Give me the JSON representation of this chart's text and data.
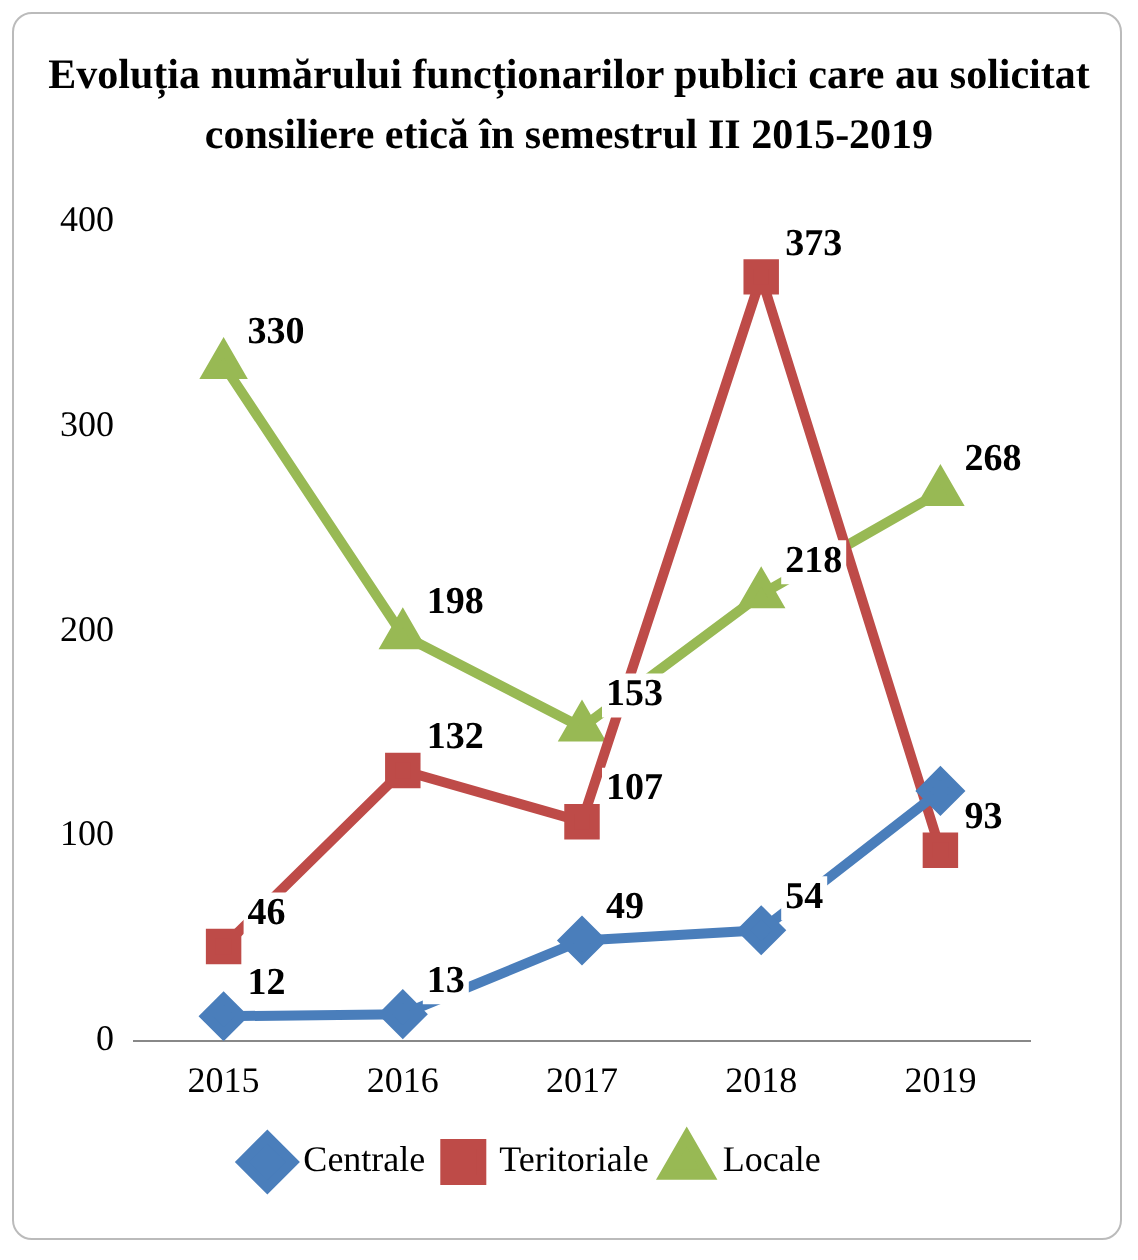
{
  "chart_data": {
    "type": "line",
    "title": "Evoluția numărului funcționarilor publici care au solicitat consiliere etică în semestrul  II 2015-2019",
    "categories": [
      "2015",
      "2016",
      "2017",
      "2018",
      "2019"
    ],
    "series": [
      {
        "name": "Centrale",
        "color": "#4a7ebb",
        "marker": "diamond",
        "values": [
          12,
          13,
          49,
          54,
          122
        ],
        "value_labels": [
          "12",
          "13",
          "49",
          "54",
          null
        ]
      },
      {
        "name": "Teritoriale",
        "color": "#be4b48",
        "marker": "square",
        "values": [
          46,
          132,
          107,
          373,
          93
        ],
        "value_labels": [
          "46",
          "132",
          "107",
          "373",
          "93"
        ]
      },
      {
        "name": "Locale",
        "color": "#98b954",
        "marker": "triangle",
        "values": [
          330,
          198,
          153,
          218,
          268
        ],
        "value_labels": [
          "330",
          "198",
          "153",
          "218",
          "268"
        ]
      }
    ],
    "ylim": [
      0,
      400
    ],
    "yticks": [
      0,
      100,
      200,
      300,
      400
    ],
    "grid": false,
    "legend": "bottom"
  }
}
